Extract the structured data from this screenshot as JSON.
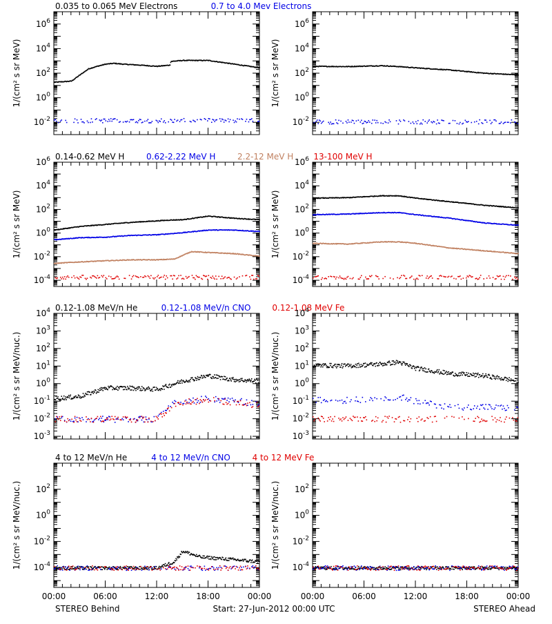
{
  "colors": {
    "black": "#000000",
    "blue": "#0000e6",
    "tan": "#c08060",
    "red": "#e00000"
  },
  "footer": {
    "left_label": "STEREO Behind",
    "center_label": "Start: 27-Jun-2012 00:00 UTC",
    "right_label": "STEREO Ahead"
  },
  "chart_data": [
    {
      "type": "scatter",
      "panel": "electrons",
      "ylabel": "1/(cm² s sr MeV)",
      "scale": "log",
      "ylim": [
        0.001,
        10000000
      ],
      "ytick_exponents": [
        -2,
        0,
        2,
        4,
        6
      ],
      "xticks": [
        "00:00",
        "06:00",
        "12:00",
        "18:00",
        "00:00"
      ],
      "series": [
        {
          "name": "0.035 to 0.065 MeV Electrons",
          "color": "black"
        },
        {
          "name": "0.7 to 4.0 Mev Electrons",
          "color": "blue"
        }
      ],
      "behind": [
        {
          "x": [
            0,
            2,
            3,
            4,
            5,
            6,
            7,
            8,
            10,
            12,
            13.5,
            13.6,
            15,
            18,
            21,
            24
          ],
          "y": [
            20,
            25,
            80,
            250,
            400,
            600,
            700,
            600,
            500,
            400,
            500,
            1000,
            1200,
            1200,
            600,
            300
          ]
        },
        {
          "x": [
            0,
            6,
            12,
            18,
            24
          ],
          "y": [
            0.015,
            0.015,
            0.015,
            0.015,
            0.015
          ]
        }
      ],
      "ahead": [
        {
          "x": [
            0,
            4,
            8,
            10,
            12,
            16,
            20,
            24
          ],
          "y": [
            400,
            380,
            450,
            380,
            300,
            200,
            110,
            80
          ]
        },
        {
          "x": [
            0,
            6,
            12,
            18,
            24
          ],
          "y": [
            0.012,
            0.012,
            0.012,
            0.012,
            0.012
          ]
        }
      ]
    },
    {
      "type": "scatter",
      "panel": "protons",
      "ylabel": "1/(cm² s sr MeV)",
      "scale": "log",
      "ylim": [
        3e-05,
        1000000
      ],
      "ytick_exponents": [
        -4,
        -2,
        0,
        2,
        4,
        6
      ],
      "xticks": [
        "00:00",
        "06:00",
        "12:00",
        "18:00",
        "00:00"
      ],
      "series": [
        {
          "name": "0.14-0.62 MeV H",
          "color": "black"
        },
        {
          "name": "0.62-2.22 MeV H",
          "color": "blue"
        },
        {
          "name": "2.2-12 MeV H",
          "color": "tan"
        },
        {
          "name": "13-100 MeV H",
          "color": "red"
        }
      ],
      "behind": [
        {
          "x": [
            0,
            3,
            6,
            9,
            12,
            13.5,
            15,
            18,
            21,
            24
          ],
          "y": [
            2,
            4,
            6,
            9,
            12,
            14,
            15,
            30,
            20,
            15
          ]
        },
        {
          "x": [
            0,
            3,
            6,
            9,
            12,
            15,
            18,
            21,
            24
          ],
          "y": [
            0.3,
            0.45,
            0.5,
            0.7,
            0.8,
            1.2,
            2,
            2,
            1.5
          ]
        },
        {
          "x": [
            0,
            3,
            6,
            9,
            12,
            14,
            16,
            18,
            21,
            24
          ],
          "y": [
            0.003,
            0.004,
            0.005,
            0.006,
            0.006,
            0.007,
            0.03,
            0.025,
            0.02,
            0.012
          ]
        },
        {
          "x": [
            0,
            6,
            12,
            18,
            24
          ],
          "y": [
            0.0002,
            0.0002,
            0.0002,
            0.0002,
            0.0002
          ]
        }
      ],
      "ahead": [
        {
          "x": [
            0,
            4,
            8,
            10,
            12,
            16,
            20,
            24
          ],
          "y": [
            1000,
            1100,
            1600,
            1600,
            1000,
            500,
            250,
            150
          ]
        },
        {
          "x": [
            0,
            4,
            8,
            10,
            12,
            16,
            20,
            24
          ],
          "y": [
            40,
            45,
            60,
            60,
            40,
            20,
            8,
            5
          ]
        },
        {
          "x": [
            0,
            4,
            8,
            10,
            12,
            16,
            20,
            24
          ],
          "y": [
            0.15,
            0.13,
            0.2,
            0.2,
            0.15,
            0.06,
            0.035,
            0.02
          ]
        },
        {
          "x": [
            0,
            6,
            12,
            18,
            24
          ],
          "y": [
            0.0002,
            0.0002,
            0.0002,
            0.0002,
            0.0002
          ]
        }
      ]
    },
    {
      "type": "scatter",
      "panel": "heavy-low",
      "ylabel": "1/(cm² s sr MeV/nuc.)",
      "scale": "log",
      "ylim": [
        0.0007,
        10000
      ],
      "ytick_exponents": [
        -3,
        -2,
        -1,
        0,
        1,
        2,
        3,
        4
      ],
      "xticks": [
        "00:00",
        "06:00",
        "12:00",
        "18:00",
        "00:00"
      ],
      "series": [
        {
          "name": "0.12-1.08 MeV/n He",
          "color": "black"
        },
        {
          "name": "0.12-1.08 MeV/n CNO",
          "color": "blue"
        },
        {
          "name": "0.12-1.08 MeV Fe",
          "color": "red"
        }
      ],
      "behind": [
        {
          "x": [
            0,
            3,
            6,
            9,
            12,
            15,
            18,
            21,
            24
          ],
          "y": [
            0.15,
            0.2,
            0.6,
            0.6,
            0.5,
            1.5,
            3,
            1.8,
            1.5
          ]
        },
        {
          "x": [
            0,
            6,
            12,
            14,
            16,
            18,
            20,
            24
          ],
          "y": [
            0.01,
            0.01,
            0.01,
            0.1,
            0.12,
            0.15,
            0.12,
            0.08
          ]
        },
        {
          "x": [
            0,
            6,
            12,
            14,
            16,
            18,
            20,
            24
          ],
          "y": [
            0.01,
            0.01,
            0.01,
            0.08,
            0.1,
            0.12,
            0.1,
            0.06
          ]
        }
      ],
      "ahead": [
        {
          "x": [
            0,
            4,
            8,
            10,
            12,
            16,
            20,
            24
          ],
          "y": [
            12,
            11,
            14,
            18,
            8,
            4,
            3,
            1.5
          ]
        },
        {
          "x": [
            0,
            4,
            8,
            10,
            12,
            16,
            20,
            24
          ],
          "y": [
            0.12,
            0.12,
            0.15,
            0.2,
            0.1,
            0.05,
            0.05,
            0.04
          ]
        },
        {
          "x": [
            0,
            6,
            12,
            18,
            24
          ],
          "y": [
            0.01,
            0.01,
            0.01,
            0.01,
            0.01
          ]
        }
      ]
    },
    {
      "type": "scatter",
      "panel": "heavy-high",
      "ylabel": "1/(cm² s sr MeV/nuc.)",
      "scale": "log",
      "ylim": [
        3e-06,
        10000
      ],
      "ytick_exponents": [
        -4,
        -2,
        0,
        2
      ],
      "xticks": [
        "00:00",
        "06:00",
        "12:00",
        "18:00",
        "00:00"
      ],
      "series": [
        {
          "name": "4 to 12 MeV/n He",
          "color": "black"
        },
        {
          "name": "4 to 12 MeV/n CNO",
          "color": "blue"
        },
        {
          "name": "4 to 12 MeV Fe",
          "color": "red"
        }
      ],
      "behind": [
        {
          "x": [
            0,
            6,
            12,
            14,
            15,
            17,
            20,
            24
          ],
          "y": [
            0.0001,
            0.0001,
            0.0001,
            0.0003,
            0.002,
            0.0007,
            0.0005,
            0.0003
          ]
        },
        {
          "x": [
            0,
            6,
            12,
            18,
            24
          ],
          "y": [
            0.0001,
            0.0001,
            0.0001,
            0.0001,
            0.0001
          ]
        },
        {
          "x": [
            0,
            6,
            12,
            18,
            24
          ],
          "y": [
            0.0001,
            0.0001,
            0.0001,
            0.0001,
            0.0001
          ]
        }
      ],
      "ahead": [
        {
          "x": [
            0,
            6,
            12,
            18,
            24
          ],
          "y": [
            0.0001,
            0.0001,
            0.0001,
            0.0001,
            0.0001
          ]
        },
        {
          "x": [
            0,
            24
          ],
          "y": [
            0.0001,
            0.0001
          ]
        },
        {
          "x": [
            0,
            24
          ],
          "y": [
            0.0001,
            0.0001
          ]
        }
      ]
    }
  ]
}
